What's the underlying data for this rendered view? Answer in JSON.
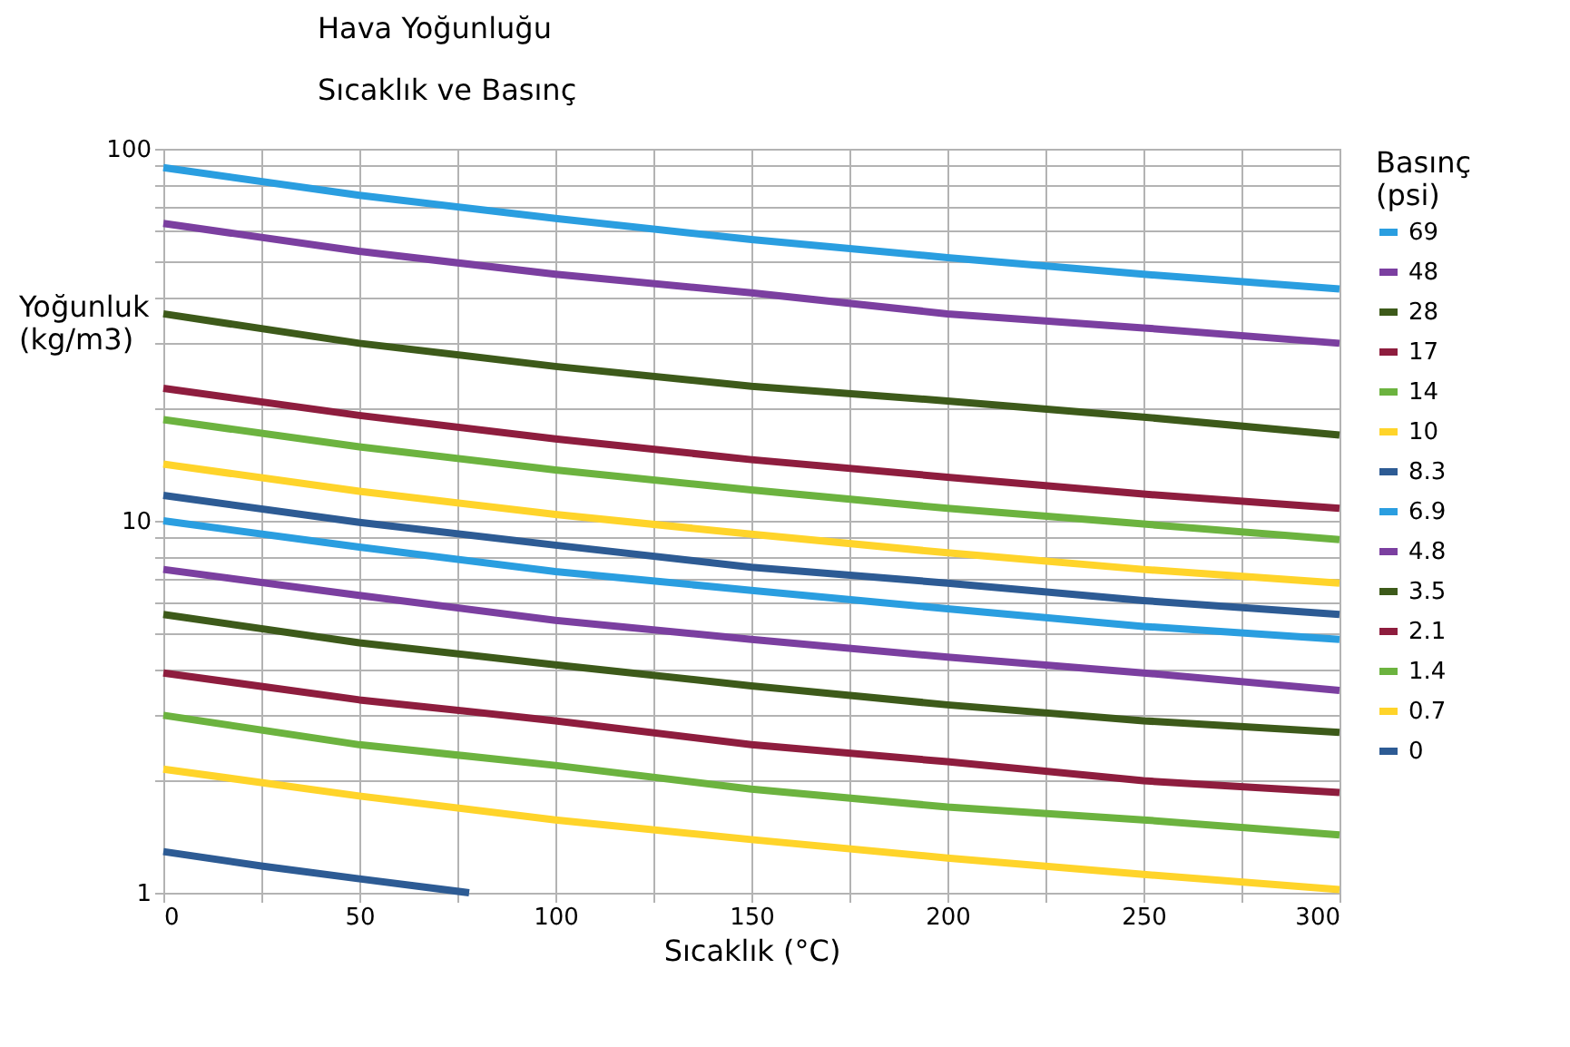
{
  "chart_data": {
    "type": "line",
    "title": "Hava Yoğunluğu",
    "subtitle": "Sıcaklık ve Basınç",
    "xlabel": "Sıcaklık (°C)",
    "ylabel": "Yoğunluk (kg/m3)",
    "legend_title": "Basınç (psi)",
    "legend": "right",
    "log": "y",
    "grid": true,
    "marker": "none",
    "line_style": "solid",
    "x": [
      0,
      50,
      100,
      150,
      200,
      250,
      300
    ],
    "xlim": [
      0,
      300
    ],
    "xticks": [
      0,
      {
        "value": 25,
        "label": null
      },
      50,
      {
        "value": 75,
        "label": null
      },
      100,
      {
        "value": 125,
        "label": null
      },
      150,
      {
        "value": 175,
        "label": null
      },
      200,
      {
        "value": 225,
        "label": null
      },
      250,
      {
        "value": 275,
        "label": null
      },
      300
    ],
    "ylim": [
      1,
      100
    ],
    "yticks": [
      1,
      {
        "value": 2,
        "label": null
      },
      {
        "value": 3,
        "label": null
      },
      {
        "value": 4,
        "label": null
      },
      {
        "value": 5,
        "label": null
      },
      {
        "value": 6,
        "label": null
      },
      {
        "value": 7,
        "label": null
      },
      {
        "value": 8,
        "label": null
      },
      {
        "value": 9,
        "label": null
      },
      10,
      {
        "value": 20,
        "label": null
      },
      {
        "value": 30,
        "label": null
      },
      {
        "value": 40,
        "label": null
      },
      {
        "value": 50,
        "label": null
      },
      {
        "value": 60,
        "label": null
      },
      {
        "value": 70,
        "label": null
      },
      {
        "value": 80,
        "label": null
      },
      {
        "value": 90,
        "label": null
      },
      100
    ],
    "series": [
      {
        "name": "69",
        "color": "#2a9ee0",
        "values": [
          89,
          75,
          65,
          57,
          51,
          46,
          42
        ]
      },
      {
        "name": "48",
        "color": "#7b3fa0",
        "values": [
          63,
          53,
          46,
          41,
          36,
          33,
          30
        ]
      },
      {
        "name": "28",
        "color": "#3d5a1a",
        "values": [
          36,
          30,
          26,
          23,
          21,
          19,
          17
        ]
      },
      {
        "name": "17",
        "color": "#8e1d3e",
        "values": [
          22.7,
          19.2,
          16.6,
          14.6,
          13.1,
          11.8,
          10.8
        ]
      },
      {
        "name": "14",
        "color": "#6cb33f",
        "values": [
          18.7,
          15.8,
          13.7,
          12.1,
          10.8,
          9.8,
          8.9
        ]
      },
      {
        "name": "10",
        "color": "#ffd42a",
        "values": [
          14.2,
          12.0,
          10.4,
          9.2,
          8.2,
          7.4,
          6.8
        ]
      },
      {
        "name": "8.3",
        "color": "#2d5b94",
        "values": [
          11.7,
          9.9,
          8.6,
          7.5,
          6.8,
          6.1,
          5.6
        ]
      },
      {
        "name": "6.9",
        "color": "#2a9ee0",
        "values": [
          10.0,
          8.5,
          7.3,
          6.5,
          5.8,
          5.2,
          4.8
        ]
      },
      {
        "name": "4.8",
        "color": "#7b3fa0",
        "values": [
          7.4,
          6.3,
          5.4,
          4.8,
          4.3,
          3.9,
          3.5
        ]
      },
      {
        "name": "3.5",
        "color": "#3d5a1a",
        "values": [
          5.6,
          4.7,
          4.1,
          3.6,
          3.2,
          2.9,
          2.7
        ]
      },
      {
        "name": "2.1",
        "color": "#8e1d3e",
        "values": [
          3.9,
          3.3,
          2.9,
          2.5,
          2.25,
          2.0,
          1.86
        ]
      },
      {
        "name": "1.4",
        "color": "#6cb33f",
        "values": [
          3.0,
          2.5,
          2.2,
          1.9,
          1.7,
          1.57,
          1.43
        ]
      },
      {
        "name": "0.7",
        "color": "#ffd42a",
        "values": [
          2.15,
          1.82,
          1.57,
          1.39,
          1.24,
          1.12,
          1.02
        ]
      },
      {
        "name": "0",
        "color": "#2d5b94",
        "x": [
          0,
          25,
          50,
          78
        ],
        "values": [
          1.29,
          1.18,
          1.09,
          1.0
        ]
      }
    ]
  }
}
